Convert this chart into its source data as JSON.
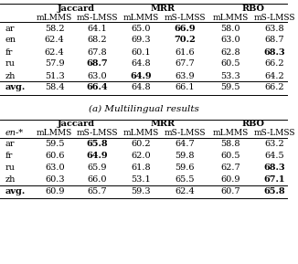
{
  "title_a": "(a) Multilingual results",
  "group_headers": [
    "Jaccard",
    "MRR",
    "RBO"
  ],
  "rows_a": {
    "labels": [
      "ar",
      "en",
      "fr",
      "ru",
      "zh",
      "avg."
    ],
    "data": [
      [
        "58.2",
        "64.1",
        "65.0",
        "66.9",
        "58.0",
        "63.8"
      ],
      [
        "62.4",
        "68.2",
        "69.3",
        "70.2",
        "63.0",
        "68.7"
      ],
      [
        "62.4",
        "67.8",
        "60.1",
        "61.6",
        "62.8",
        "68.3"
      ],
      [
        "57.9",
        "68.7",
        "64.8",
        "67.7",
        "60.5",
        "66.2"
      ],
      [
        "51.3",
        "63.0",
        "64.9",
        "63.9",
        "53.3",
        "64.2"
      ],
      [
        "58.4",
        "66.4",
        "64.8",
        "66.1",
        "59.5",
        "66.2"
      ]
    ],
    "bold": [
      [
        false,
        false,
        false,
        true,
        false,
        false
      ],
      [
        false,
        false,
        false,
        true,
        false,
        false
      ],
      [
        false,
        false,
        false,
        false,
        false,
        true
      ],
      [
        false,
        true,
        false,
        false,
        false,
        false
      ],
      [
        false,
        false,
        true,
        false,
        false,
        false
      ],
      [
        false,
        true,
        false,
        false,
        false,
        false
      ]
    ]
  },
  "rows_b": {
    "labels": [
      "ar",
      "fr",
      "ru",
      "zh",
      "avg."
    ],
    "data": [
      [
        "59.5",
        "65.8",
        "60.2",
        "64.7",
        "58.8",
        "63.2"
      ],
      [
        "60.6",
        "64.9",
        "62.0",
        "59.8",
        "60.5",
        "64.5"
      ],
      [
        "63.0",
        "65.9",
        "61.8",
        "59.6",
        "62.7",
        "68.3"
      ],
      [
        "60.3",
        "66.0",
        "53.1",
        "65.5",
        "60.9",
        "67.1"
      ],
      [
        "60.9",
        "65.7",
        "59.3",
        "62.4",
        "60.7",
        "65.8"
      ]
    ],
    "bold": [
      [
        false,
        true,
        false,
        false,
        false,
        false
      ],
      [
        false,
        true,
        false,
        false,
        false,
        false
      ],
      [
        false,
        false,
        false,
        false,
        false,
        true
      ],
      [
        false,
        false,
        false,
        false,
        false,
        true
      ],
      [
        false,
        false,
        false,
        false,
        false,
        true
      ]
    ]
  },
  "bg_color": "#ffffff",
  "line_color": "#000000",
  "fs": 7.0,
  "fs_sub": 6.5,
  "fs_title": 7.5
}
